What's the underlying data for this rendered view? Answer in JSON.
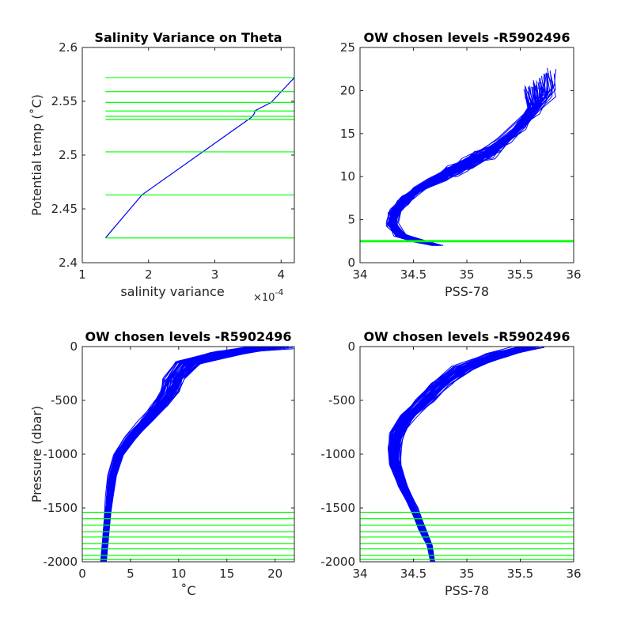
{
  "colors": {
    "profile": "#0000ff",
    "level": "#00ff00",
    "axis": "#262626"
  },
  "chart_data": [
    {
      "type": "line",
      "title": "Salinity Variance on Theta",
      "xlabel": "salinity variance",
      "xlabel_exponent": "×10",
      "xlabel_exponent_power": "-4",
      "ylabel": "Potential temp (˚C)",
      "xlim": [
        1,
        4.2
      ],
      "ylim": [
        2.4,
        2.6
      ],
      "xticks": [
        1,
        2,
        3,
        4
      ],
      "xtick_labels": [
        "1",
        "2",
        "3",
        "4"
      ],
      "yticks": [
        2.4,
        2.45,
        2.5,
        2.55,
        2.6
      ],
      "ytick_labels": [
        "2.4",
        "2.45",
        "2.5",
        "2.55",
        "2.6"
      ],
      "series": [
        {
          "x": [
            1.35,
            1.9,
            3.55,
            3.6,
            3.6,
            3.85,
            4.2
          ],
          "y": [
            2.423,
            2.463,
            2.535,
            2.539,
            2.541,
            2.549,
            2.572
          ]
        }
      ],
      "hlines": [
        2.423,
        2.463,
        2.503,
        2.533,
        2.536,
        2.541,
        2.549,
        2.559,
        2.572
      ],
      "hline_xrange": [
        1.35,
        4.2
      ]
    },
    {
      "type": "line",
      "title": "OW chosen levels -R5902496",
      "xlabel": "PSS-78",
      "ylabel": "",
      "xlim": [
        34,
        36
      ],
      "ylim": [
        0,
        25
      ],
      "xticks": [
        34,
        34.5,
        35,
        35.5,
        36
      ],
      "xtick_labels": [
        "34",
        "34.5",
        "35",
        "35.5",
        "36"
      ],
      "yticks": [
        0,
        5,
        10,
        15,
        20,
        25
      ],
      "ytick_labels": [
        "0",
        "5",
        "10",
        "15",
        "20",
        "25"
      ],
      "profile_count": 60,
      "profile_template": {
        "salinity": [
          34.72,
          34.55,
          34.38,
          34.3,
          34.33,
          34.42,
          34.55,
          34.68,
          34.82,
          34.95,
          35.08,
          35.3,
          35.55,
          35.7,
          35.68
        ],
        "temperature": [
          2.0,
          2.5,
          3.2,
          4.5,
          6.0,
          7.3,
          8.5,
          9.5,
          10.4,
          11.2,
          12.0,
          13.5,
          16.5,
          19.0,
          21.0
        ]
      },
      "hlines": [
        2.423,
        2.463,
        2.503,
        2.533,
        2.536,
        2.541,
        2.549,
        2.559,
        2.572
      ],
      "hline_xrange": [
        34,
        36
      ]
    },
    {
      "type": "line",
      "title": "OW chosen levels -R5902496",
      "xlabel": "˚C",
      "ylabel": "Pressure (dbar)",
      "xlim": [
        0,
        22
      ],
      "ylim": [
        -2000,
        0
      ],
      "xticks": [
        0,
        5,
        10,
        15,
        20
      ],
      "xtick_labels": [
        "0",
        "5",
        "10",
        "15",
        "20"
      ],
      "yticks": [
        -2000,
        -1500,
        -1000,
        -500,
        0
      ],
      "ytick_labels": [
        "-2000",
        "-1500",
        "-1000",
        "-500",
        "0"
      ],
      "profile_count": 60,
      "profile_template": {
        "temperature": [
          20.0,
          15.0,
          11.0,
          9.5,
          9.0,
          8.0,
          6.5,
          5.0,
          3.8,
          3.1,
          2.8,
          2.6,
          2.4,
          2.2
        ],
        "pressure": [
          0,
          -60,
          -150,
          -300,
          -420,
          -550,
          -700,
          -850,
          -1000,
          -1200,
          -1400,
          -1600,
          -1800,
          -2000
        ]
      },
      "hlines": [
        -1540,
        -1600,
        -1660,
        -1720,
        -1770,
        -1830,
        -1880,
        -1940,
        -1980
      ],
      "hline_xrange": [
        0,
        22
      ]
    },
    {
      "type": "line",
      "title": "OW chosen levels -R5902496",
      "xlabel": "PSS-78",
      "ylabel": "",
      "xlim": [
        34,
        36
      ],
      "ylim": [
        -2000,
        0
      ],
      "xticks": [
        34,
        34.5,
        35,
        35.5,
        36
      ],
      "xtick_labels": [
        "34",
        "34.5",
        "35",
        "35.5",
        "36"
      ],
      "yticks": [
        -2000,
        -1500,
        -1000,
        -500,
        0
      ],
      "ytick_labels": [
        "-2000",
        "-1500",
        "-1000",
        "-500",
        "0"
      ],
      "profile_count": 60,
      "profile_template": {
        "salinity": [
          35.6,
          35.3,
          34.95,
          34.75,
          34.6,
          34.45,
          34.35,
          34.32,
          34.33,
          34.4,
          34.5,
          34.58,
          34.65,
          34.68
        ],
        "pressure": [
          0,
          -80,
          -200,
          -350,
          -500,
          -650,
          -800,
          -950,
          -1100,
          -1300,
          -1500,
          -1700,
          -1850,
          -2000
        ]
      },
      "hlines": [
        -1540,
        -1600,
        -1660,
        -1720,
        -1770,
        -1830,
        -1880,
        -1940,
        -1980
      ],
      "hline_xrange": [
        34,
        36
      ]
    }
  ]
}
